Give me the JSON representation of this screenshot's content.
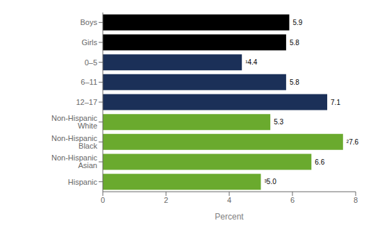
{
  "chart_data": {
    "type": "bar",
    "orientation": "horizontal",
    "categories": [
      "Boys",
      "Girls",
      "0–5",
      "6–11",
      "12–17",
      "Non-Hispanic White",
      "Non-Hispanic Black",
      "Non-Hispanic Asian",
      "Hispanic"
    ],
    "values": [
      5.9,
      5.8,
      4.4,
      5.8,
      7.1,
      5.3,
      7.6,
      6.6,
      5.0
    ],
    "value_labels": [
      "5.9",
      "5.8",
      "¹4.4",
      "5.8",
      "7.1",
      "5.3",
      "²7.6",
      "6.6",
      "³5.0"
    ],
    "colors": [
      "#000000",
      "#000000",
      "#1b3058",
      "#1b3058",
      "#1b3058",
      "#6aaa2e",
      "#6aaa2e",
      "#6aaa2e",
      "#6aaa2e"
    ],
    "xlabel": "Percent",
    "xlim": [
      0,
      8
    ],
    "xticks": [
      0,
      2,
      4,
      6,
      8
    ],
    "data_labels": true,
    "grid": false
  }
}
